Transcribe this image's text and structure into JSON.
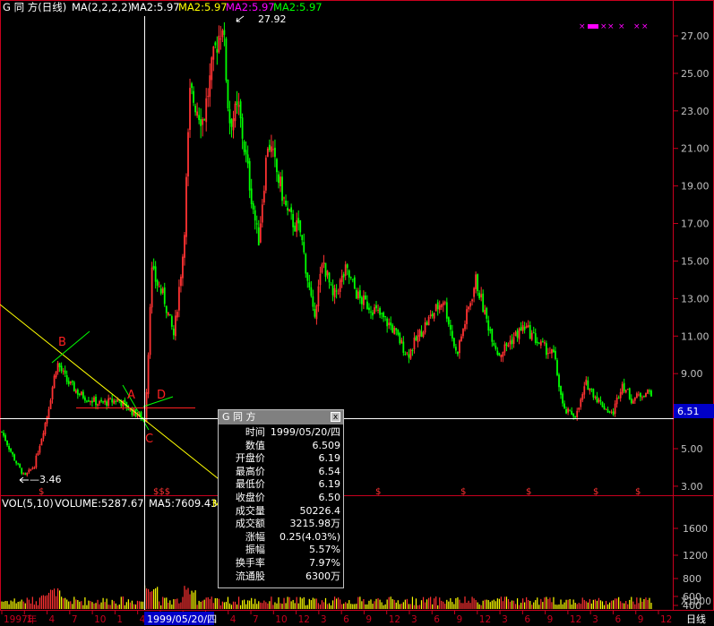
{
  "header": {
    "stock_title": "G 同  方(日线)",
    "ma_params": "MA(2,2,2,2)",
    "ma_items": [
      {
        "label": "MA2:5.97",
        "color": "#ffffff"
      },
      {
        "label": "MA2:5.97",
        "color": "#ffff00"
      },
      {
        "label": "MA2:5.97",
        "color": "#ff00ff"
      },
      {
        "label": "MA2:5.97",
        "color": "#00ff00"
      }
    ]
  },
  "volume_header": {
    "vol_label": "VOL(5,10)",
    "volume": "VOLUME:5287.67",
    "ma5": "MA5:7609.43",
    "ma_trunc": "M"
  },
  "bottom_bar": {
    "period": "日线",
    "cursor_date": "1999/05/20/四"
  },
  "tooltip": {
    "title": "G 同  方",
    "close_symbol": "x",
    "rows": [
      {
        "k": "时间",
        "v": "1999/05/20/四",
        "c": "white"
      },
      {
        "k": "数值",
        "v": "6.509",
        "c": "white"
      },
      {
        "k": "开盘价",
        "v": "6.19",
        "c": "green"
      },
      {
        "k": "最高价",
        "v": "6.54",
        "c": "red"
      },
      {
        "k": "最低价",
        "v": "6.19",
        "c": "green"
      },
      {
        "k": "收盘价",
        "v": "6.50",
        "c": "red"
      },
      {
        "k": "成交量",
        "v": "50226.4",
        "c": "yellow"
      },
      {
        "k": "成交额",
        "v": "3215.98万",
        "c": "white"
      },
      {
        "k": "涨幅",
        "v": "0.25(4.03%)",
        "c": "red"
      },
      {
        "k": "振幅",
        "v": "5.57%",
        "c": "white"
      },
      {
        "k": "换手率",
        "v": "7.97%",
        "c": "white"
      },
      {
        "k": "流通股",
        "v": "6300万",
        "c": "white"
      }
    ]
  },
  "colors": {
    "up": "#ff3232",
    "down": "#00ff00",
    "axis": "#c8001e",
    "cursor": "#ffffff"
  },
  "chart_data": {
    "type": "candlestick",
    "price_axis": {
      "ticks": [
        "27.00",
        "25.00",
        "23.00",
        "21.00",
        "19.00",
        "17.00",
        "15.00",
        "13.00",
        "11.00",
        "9.00",
        "7.00",
        "5.00",
        "3.00"
      ],
      "ylim": [
        2.5,
        28.5
      ]
    },
    "volume_axis": {
      "ticks": [
        "1600",
        "1200",
        "800",
        "600",
        "400"
      ],
      "unit": "X1000"
    },
    "price_label": "6.51",
    "annotations": {
      "high": "27.92",
      "low": "3.46",
      "points": [
        "A",
        "B",
        "C",
        "D"
      ]
    },
    "x_ticks": [
      "1997年",
      "1",
      "4",
      "7",
      "10",
      "1",
      "4",
      "7",
      "10",
      "1",
      "4",
      "7",
      "10",
      "12",
      "3",
      "6",
      "9",
      "12",
      "3",
      "6",
      "9",
      "12",
      "3",
      "6",
      "9",
      "12",
      "3",
      "6",
      "9",
      "12"
    ],
    "events": [
      "$",
      "$$$",
      "$",
      "$",
      "$",
      "$",
      "$",
      "$"
    ],
    "series_trend": [
      [
        0,
        5.9
      ],
      [
        0.02,
        4.4
      ],
      [
        0.035,
        3.5
      ],
      [
        0.05,
        4.1
      ],
      [
        0.07,
        6.8
      ],
      [
        0.085,
        9.6
      ],
      [
        0.1,
        8.6
      ],
      [
        0.12,
        7.9
      ],
      [
        0.15,
        7.4
      ],
      [
        0.18,
        7.6
      ],
      [
        0.2,
        7.0
      ],
      [
        0.215,
        6.7
      ],
      [
        0.22,
        6.5
      ],
      [
        0.225,
        9.5
      ],
      [
        0.23,
        14.5
      ],
      [
        0.25,
        13.0
      ],
      [
        0.265,
        11.0
      ],
      [
        0.28,
        15.8
      ],
      [
        0.29,
        24.0
      ],
      [
        0.31,
        22.5
      ],
      [
        0.33,
        26.5
      ],
      [
        0.34,
        27.8
      ],
      [
        0.35,
        22.5
      ],
      [
        0.365,
        23.0
      ],
      [
        0.38,
        19.5
      ],
      [
        0.395,
        16.0
      ],
      [
        0.41,
        21.5
      ],
      [
        0.425,
        19.5
      ],
      [
        0.44,
        17.5
      ],
      [
        0.46,
        16.5
      ],
      [
        0.48,
        12.0
      ],
      [
        0.495,
        15.0
      ],
      [
        0.51,
        13.0
      ],
      [
        0.53,
        14.5
      ],
      [
        0.55,
        13.0
      ],
      [
        0.57,
        12.5
      ],
      [
        0.6,
        11.5
      ],
      [
        0.625,
        10.0
      ],
      [
        0.65,
        11.5
      ],
      [
        0.68,
        13.0
      ],
      [
        0.7,
        10.0
      ],
      [
        0.715,
        12.0
      ],
      [
        0.73,
        14.0
      ],
      [
        0.745,
        12.0
      ],
      [
        0.765,
        10.0
      ],
      [
        0.79,
        11.0
      ],
      [
        0.805,
        11.5
      ],
      [
        0.83,
        10.5
      ],
      [
        0.85,
        10.0
      ],
      [
        0.865,
        7.0
      ],
      [
        0.885,
        6.8
      ],
      [
        0.9,
        8.5
      ],
      [
        0.92,
        7.5
      ],
      [
        0.94,
        6.8
      ],
      [
        0.955,
        8.5
      ],
      [
        0.97,
        7.6
      ],
      [
        0.99,
        8.0
      ]
    ]
  }
}
